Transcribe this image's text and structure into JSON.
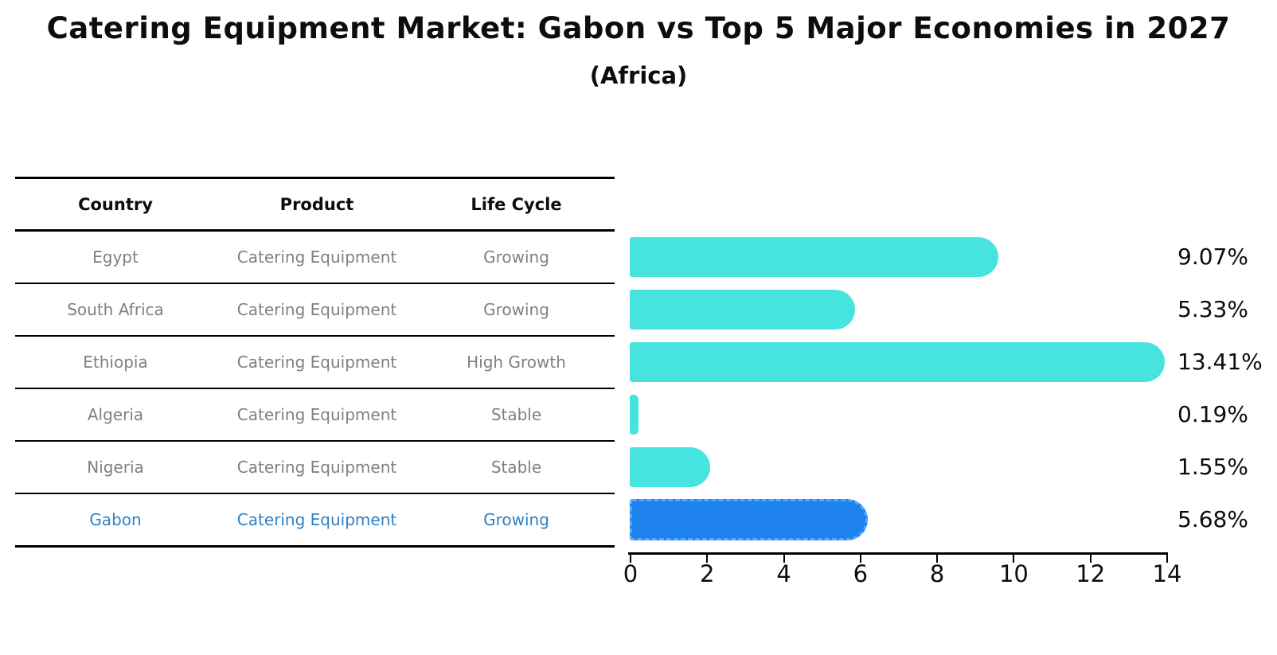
{
  "title": "Catering Equipment Market: Gabon vs Top 5 Major Economies in 2027",
  "subtitle": "(Africa)",
  "table": {
    "headers": [
      "Country",
      "Product",
      "Life Cycle"
    ],
    "rows": [
      {
        "country": "Egypt",
        "product": "Catering Equipment",
        "life_cycle": "Growing",
        "highlight": false
      },
      {
        "country": "South Africa",
        "product": "Catering Equipment",
        "life_cycle": "Growing",
        "highlight": false
      },
      {
        "country": "Ethiopia",
        "product": "Catering Equipment",
        "life_cycle": "High Growth",
        "highlight": false
      },
      {
        "country": "Algeria",
        "product": "Catering Equipment",
        "life_cycle": "Stable",
        "highlight": false
      },
      {
        "country": "Nigeria",
        "product": "Catering Equipment",
        "life_cycle": "Stable",
        "highlight": false
      },
      {
        "country": "Gabon",
        "product": "Catering Equipment",
        "life_cycle": "Growing",
        "highlight": true
      }
    ]
  },
  "chart_data": {
    "type": "bar",
    "orientation": "horizontal",
    "title": "Catering Equipment Market: Gabon vs Top 5 Major Economies in 2027",
    "subtitle": "(Africa)",
    "categories": [
      "Egypt",
      "South Africa",
      "Ethiopia",
      "Algeria",
      "Nigeria",
      "Gabon"
    ],
    "values": [
      9.07,
      5.33,
      13.41,
      0.19,
      1.55,
      5.68
    ],
    "labels": [
      "9.07%",
      "5.33%",
      "13.41%",
      "0.19%",
      "1.55%",
      "5.68%"
    ],
    "unit": "%",
    "xlim": [
      0,
      14
    ],
    "xticks": [
      0,
      2,
      4,
      6,
      8,
      10,
      12,
      14
    ],
    "grid": false,
    "legend": false,
    "highlight_index": 5,
    "bar_color": "#47e4df",
    "highlight_color": "#1e82ee",
    "highlight_edge_color": "#55a8f4",
    "highlight_text_color": "#2e80c6",
    "row_text_color": "#808080"
  }
}
